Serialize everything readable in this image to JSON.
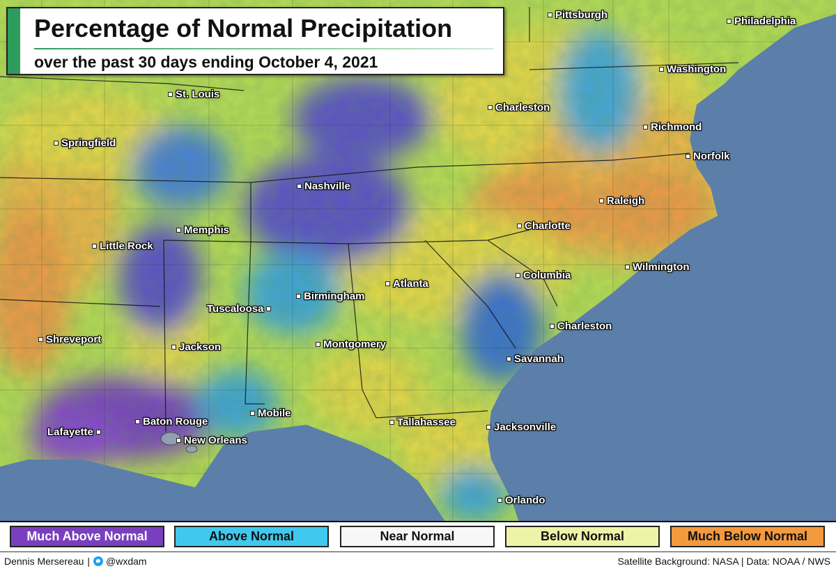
{
  "title": "Percentage of Normal Precipitation",
  "subtitle": "over the past 30 days ending October 4, 2021",
  "colors": {
    "much_above": "#7a3fbf",
    "above": "#40c8ee",
    "near": "#f7f7f7",
    "below": "#eef3a8",
    "much_below": "#f39a3e",
    "ocean": "#5b7fa8",
    "accent": "#2e9c5a"
  },
  "cities": [
    {
      "name": "Pittsburgh"
    },
    {
      "name": "Philadelphia"
    },
    {
      "name": "Washington"
    },
    {
      "name": "St. Louis"
    },
    {
      "name": "Charleston"
    },
    {
      "name": "Richmond"
    },
    {
      "name": "Springfield"
    },
    {
      "name": "Norfolk"
    },
    {
      "name": "Nashville"
    },
    {
      "name": "Raleigh"
    },
    {
      "name": "Memphis"
    },
    {
      "name": "Charlotte"
    },
    {
      "name": "Little Rock"
    },
    {
      "name": "Wilmington"
    },
    {
      "name": "Columbia"
    },
    {
      "name": "Atlanta"
    },
    {
      "name": "Birmingham"
    },
    {
      "name": "Tuscaloosa"
    },
    {
      "name": "Charleston"
    },
    {
      "name": "Shreveport"
    },
    {
      "name": "Jackson"
    },
    {
      "name": "Montgomery"
    },
    {
      "name": "Savannah"
    },
    {
      "name": "Mobile"
    },
    {
      "name": "Baton Rouge"
    },
    {
      "name": "Tallahassee"
    },
    {
      "name": "Jacksonville"
    },
    {
      "name": "Lafayette"
    },
    {
      "name": "New Orleans"
    },
    {
      "name": "Orlando"
    }
  ],
  "legend": [
    {
      "label": "Much Above Normal",
      "color": "#7a3fbf",
      "text_color": "#ffffff"
    },
    {
      "label": "Above Normal",
      "color": "#40c8ee",
      "text_color": "#111111"
    },
    {
      "label": "Near Normal",
      "color": "#f7f7f7",
      "text_color": "#111111"
    },
    {
      "label": "Below Normal",
      "color": "#eef3a8",
      "text_color": "#111111"
    },
    {
      "label": "Much Below Normal",
      "color": "#f39a3e",
      "text_color": "#111111"
    }
  ],
  "footer": {
    "author": "Dennis Mersereau",
    "separator": "|",
    "handle": "@wxdam",
    "credits": "Satellite Background: NASA | Data: NOAA / NWS"
  }
}
